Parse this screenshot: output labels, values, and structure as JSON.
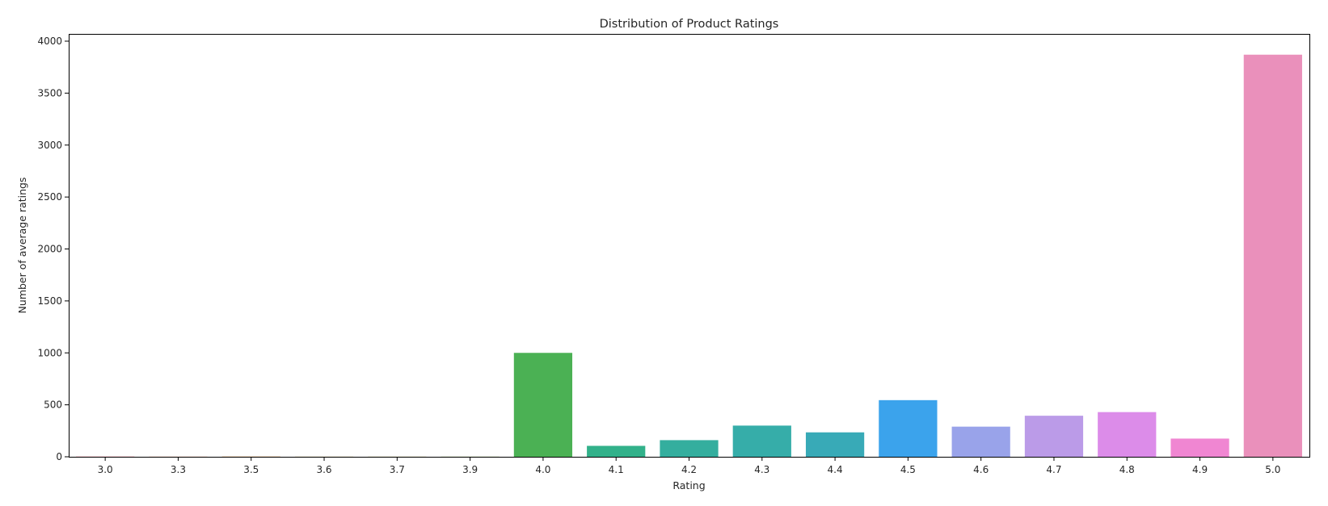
{
  "chart_data": {
    "type": "bar",
    "title": "Distribution of Product Ratings",
    "xlabel": "Rating",
    "ylabel": "Number of average ratings",
    "categories": [
      "3.0",
      "3.3",
      "3.5",
      "3.6",
      "3.7",
      "3.9",
      "4.0",
      "4.1",
      "4.2",
      "4.3",
      "4.4",
      "4.5",
      "4.6",
      "4.7",
      "4.8",
      "4.9",
      "5.0"
    ],
    "values": [
      2,
      1,
      2,
      1,
      1,
      1,
      1000,
      105,
      160,
      300,
      235,
      545,
      290,
      395,
      430,
      175,
      3870
    ],
    "colors": [
      "#f77189",
      "#f7754f",
      "#dd8a31",
      "#bb9831",
      "#a4a031",
      "#7cad31",
      "#4bb154",
      "#32b18a",
      "#34ae9e",
      "#36ada9",
      "#38aab7",
      "#3ba3ec",
      "#99a3ea",
      "#bb9be8",
      "#dc8ce9",
      "#f086d2",
      "#ea90bb"
    ],
    "ylim": [
      0,
      4070
    ],
    "yticks": [
      0,
      500,
      1000,
      1500,
      2000,
      2500,
      3000,
      3500,
      4000
    ],
    "grid": false,
    "legend": "none"
  }
}
